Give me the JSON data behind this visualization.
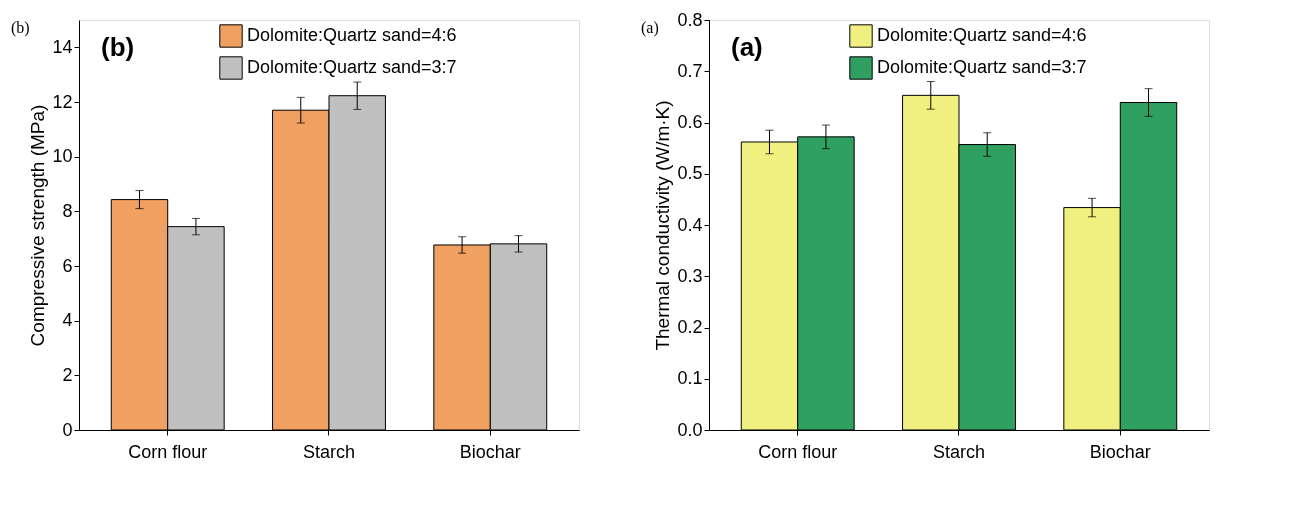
{
  "chart_data": [
    {
      "type": "bar",
      "categories": [
        "Corn flour",
        "Starch",
        "Biochar"
      ],
      "ylabel": "Compressive strength (MPa)",
      "ylim": [
        0,
        15
      ],
      "yticks": [
        0,
        2,
        4,
        6,
        8,
        10,
        12,
        14
      ],
      "legend": "top",
      "grid": false,
      "annotations": [
        "(b)",
        "(b)"
      ],
      "series": [
        {
          "name": "Dolomite:Quartz sand=4:6",
          "color": "#f0a060",
          "values": [
            8.43,
            11.7,
            6.77
          ],
          "errors": [
            0.33,
            0.47,
            0.3
          ]
        },
        {
          "name": "Dolomite:Quartz sand=3:7",
          "color": "#c0c0c0",
          "values": [
            7.44,
            12.23,
            6.81
          ],
          "errors": [
            0.3,
            0.5,
            0.3
          ]
        }
      ]
    },
    {
      "type": "bar",
      "categories": [
        "Corn flour",
        "Starch",
        "Biochar"
      ],
      "ylabel": "Thermal conductivity (W/m·K)",
      "ylim": [
        0,
        0.8
      ],
      "yticks": [
        {
          "value": 0,
          "label": "0.0"
        },
        0.1,
        0.2,
        0.3,
        0.4,
        0.5,
        0.6,
        0.7,
        0.8
      ],
      "legend": "top",
      "grid": false,
      "annotations": [
        "(a)",
        "(a)"
      ],
      "series": [
        {
          "name": "Dolomite:Quartz sand=4:6",
          "color": "#f0f080",
          "values": [
            0.562,
            0.653,
            0.434
          ],
          "errors": [
            0.023,
            0.027,
            0.018
          ]
        },
        {
          "name": "Dolomite:Quartz sand=3:7",
          "color": "#30a060",
          "values": [
            0.572,
            0.557,
            0.639
          ],
          "errors": [
            0.023,
            0.023,
            0.027
          ]
        }
      ]
    }
  ]
}
